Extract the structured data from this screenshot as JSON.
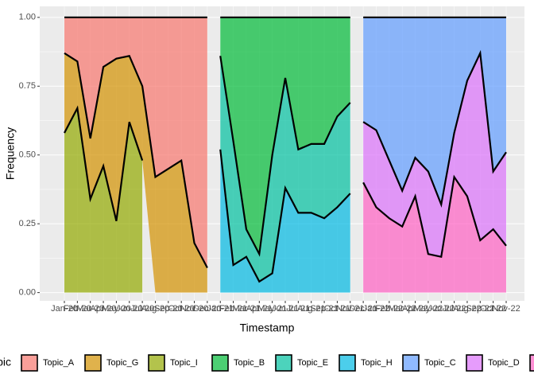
{
  "chart_data": {
    "type": "stacked_area",
    "x_label": "Timestamp",
    "y_label": "Frequency",
    "legend_title": "Topic",
    "categories": [
      "Jan-20",
      "Feb-20",
      "Mar-20",
      "Apr-20",
      "May-20",
      "Jun-20",
      "Jul-20",
      "Aug-20",
      "Sep-20",
      "Oct-20",
      "Nov-20",
      "Dec-20",
      "Jan-21",
      "Feb-21",
      "Mar-21",
      "Apr-21",
      "May-21",
      "Jun-21",
      "Jul-21",
      "Aug-21",
      "Sep-21",
      "Oct-21",
      "Nov-21",
      "Dec-21",
      "Jan-22",
      "Feb-22",
      "Mar-22",
      "Apr-22",
      "May-22",
      "Jun-22",
      "Jul-22",
      "Aug-22",
      "Sep-22",
      "Oct-22",
      "Nov-22"
    ],
    "series": [
      {
        "name": "Topic_A",
        "color": "#F8766D",
        "values": [
          0.13,
          0.16,
          0.44,
          0.18,
          0.15,
          0.14,
          0.25,
          0.58,
          0.55,
          0.52,
          0.82,
          0.91,
          null,
          null,
          null,
          null,
          null,
          null,
          null,
          null,
          null,
          null,
          null,
          null,
          null,
          null,
          null,
          null,
          null,
          null,
          null,
          null,
          null,
          null,
          null
        ]
      },
      {
        "name": "Topic_G",
        "color": "#D39200",
        "values": [
          0.29,
          0.17,
          0.22,
          0.36,
          0.59,
          0.24,
          0.27,
          0.42,
          0.45,
          0.48,
          0.18,
          0.09,
          null,
          null,
          null,
          null,
          null,
          null,
          null,
          null,
          null,
          null,
          null,
          null,
          null,
          null,
          null,
          null,
          null,
          null,
          null,
          null,
          null,
          null,
          null
        ]
      },
      {
        "name": "Topic_I",
        "color": "#93AA00",
        "values": [
          0.58,
          0.67,
          0.34,
          0.46,
          0.26,
          0.62,
          0.48,
          null,
          null,
          null,
          null,
          null,
          null,
          null,
          null,
          null,
          null,
          null,
          null,
          null,
          null,
          null,
          null,
          null,
          null,
          null,
          null,
          null,
          null,
          null,
          null,
          null,
          null,
          null,
          null
        ]
      },
      {
        "name": "Topic_B",
        "color": "#00BA38",
        "values": [
          null,
          null,
          null,
          null,
          null,
          null,
          null,
          null,
          null,
          null,
          null,
          null,
          0.14,
          0.45,
          0.77,
          0.86,
          0.5,
          0.22,
          0.48,
          0.46,
          0.46,
          0.36,
          0.31,
          null,
          null,
          null,
          null,
          null,
          null,
          null,
          null,
          null,
          null,
          null,
          null
        ]
      },
      {
        "name": "Topic_E",
        "color": "#00C19F",
        "values": [
          null,
          null,
          null,
          null,
          null,
          null,
          null,
          null,
          null,
          null,
          null,
          null,
          0.34,
          0.45,
          0.1,
          0.1,
          0.43,
          0.4,
          0.23,
          0.25,
          0.27,
          0.33,
          0.33,
          null,
          null,
          null,
          null,
          null,
          null,
          null,
          null,
          null,
          null,
          null,
          null
        ]
      },
      {
        "name": "Topic_H",
        "color": "#00B9E3",
        "values": [
          null,
          null,
          null,
          null,
          null,
          null,
          null,
          null,
          null,
          null,
          null,
          null,
          0.52,
          0.1,
          0.13,
          0.04,
          0.07,
          0.38,
          0.29,
          0.29,
          0.27,
          0.31,
          0.36,
          null,
          null,
          null,
          null,
          null,
          null,
          null,
          null,
          null,
          null,
          null,
          null
        ]
      },
      {
        "name": "Topic_C",
        "color": "#619CFF",
        "values": [
          null,
          null,
          null,
          null,
          null,
          null,
          null,
          null,
          null,
          null,
          null,
          null,
          null,
          null,
          null,
          null,
          null,
          null,
          null,
          null,
          null,
          null,
          null,
          0.38,
          0.41,
          0.52,
          0.63,
          0.51,
          0.56,
          0.68,
          0.42,
          0.23,
          0.13,
          0.56,
          0.49
        ]
      },
      {
        "name": "Topic_D",
        "color": "#DB72FB",
        "values": [
          null,
          null,
          null,
          null,
          null,
          null,
          null,
          null,
          null,
          null,
          null,
          null,
          null,
          null,
          null,
          null,
          null,
          null,
          null,
          null,
          null,
          null,
          null,
          0.22,
          0.28,
          0.21,
          0.13,
          0.14,
          0.3,
          0.19,
          0.16,
          0.42,
          0.68,
          0.21,
          0.34
        ]
      },
      {
        "name": null,
        "color": "#FF61C3",
        "values": [
          null,
          null,
          null,
          null,
          null,
          null,
          null,
          null,
          null,
          null,
          null,
          null,
          null,
          null,
          null,
          null,
          null,
          null,
          null,
          null,
          null,
          null,
          null,
          0.4,
          0.31,
          0.27,
          0.24,
          0.35,
          0.14,
          0.13,
          0.42,
          0.35,
          0.19,
          0.23,
          0.17
        ]
      }
    ],
    "ylim": [
      -0.03,
      1.04
    ],
    "yticks": [
      {
        "value": 0,
        "label": "0.00"
      },
      {
        "value": 0.25,
        "label": "0.25"
      },
      {
        "value": 0.5,
        "label": "0.50"
      },
      {
        "value": 0.75,
        "label": "0.75"
      },
      {
        "value": 1,
        "label": "1.00"
      }
    ],
    "grid": true,
    "legend": "bottom"
  }
}
